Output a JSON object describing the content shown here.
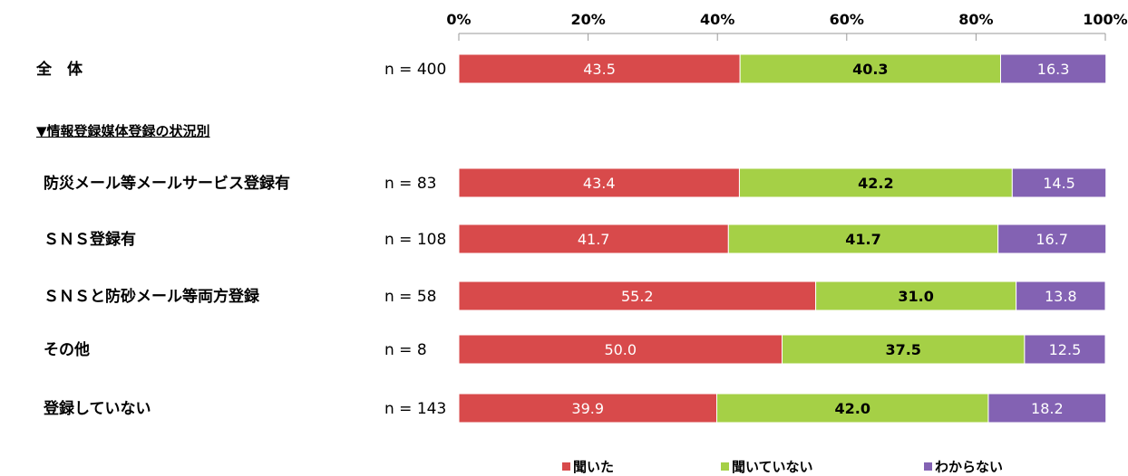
{
  "chart_data": {
    "type": "bar",
    "orientation": "horizontal",
    "stacked": true,
    "percent": true,
    "x_ticks": [
      "0%",
      "20%",
      "40%",
      "60%",
      "80%",
      "100%"
    ],
    "xlim": [
      0,
      100
    ],
    "section_header": "▼情報登録媒体登録の状況別",
    "categories": [
      "全　体",
      "防災メール等メールサービス登録有",
      "ＳＮＳ登録有",
      "ＳＮＳと防砂メール等両方登録",
      "その他",
      "登録していない"
    ],
    "n_labels": [
      "n = 400",
      "n = 83",
      "n = 108",
      "n = 58",
      "n = 8",
      "n = 143"
    ],
    "series": [
      {
        "name": "聞いた",
        "values": [
          43.5,
          43.4,
          41.7,
          55.2,
          50.0,
          39.9
        ],
        "labels": [
          "43.5",
          "43.4",
          "41.7",
          "55.2",
          "50.0",
          "39.9"
        ],
        "color": "#d84a4b"
      },
      {
        "name": "聞いていない",
        "values": [
          40.3,
          42.2,
          41.7,
          31.0,
          37.5,
          42.0
        ],
        "labels": [
          "40.3",
          "42.2",
          "41.7",
          "31.0",
          "37.5",
          "42.0"
        ],
        "color": "#a5d046"
      },
      {
        "name": "わからない",
        "values": [
          16.3,
          14.5,
          16.7,
          13.8,
          12.5,
          18.2
        ],
        "labels": [
          "16.3",
          "14.5",
          "16.7",
          "13.8",
          "12.5",
          "18.2"
        ],
        "color": "#8362b3"
      }
    ],
    "legend_position": "bottom"
  }
}
